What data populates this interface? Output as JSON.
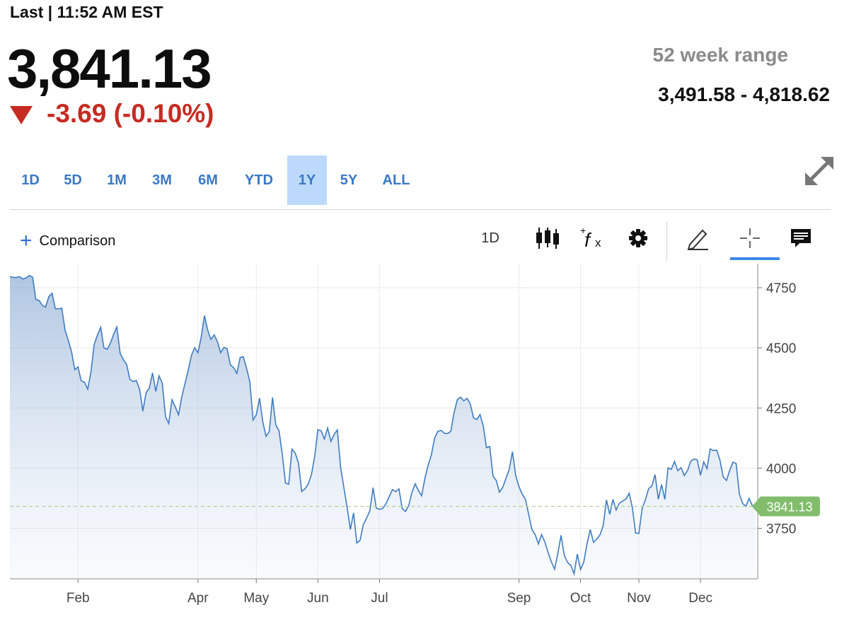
{
  "header": {
    "last_label": "Last | 11:52 AM EST",
    "price": "3,841.13",
    "change": "-3.69 (-0.10%)",
    "range_label": "52 week range",
    "range_value": "3,491.58 - 4,818.62"
  },
  "colors": {
    "up": "#7cc06a",
    "down": "#c62b22",
    "accent": "#3a78c5",
    "line": "#3f7cc0",
    "tab_active_bg": "#bcd9fb"
  },
  "tabs": [
    {
      "label": "1D",
      "active": false
    },
    {
      "label": "5D",
      "active": false
    },
    {
      "label": "1M",
      "active": false
    },
    {
      "label": "3M",
      "active": false
    },
    {
      "label": "6M",
      "active": false
    },
    {
      "label": "YTD",
      "active": false
    },
    {
      "label": "1Y",
      "active": true
    },
    {
      "label": "5Y",
      "active": false
    },
    {
      "label": "ALL",
      "active": false
    }
  ],
  "toolbar": {
    "comparison_label": "Comparison",
    "interval_label": "1D",
    "icons": [
      "candlestick-icon",
      "function-icon",
      "gear-icon",
      "pencil-icon",
      "crosshair-icon",
      "comment-icon"
    ]
  },
  "chart_data": {
    "type": "area",
    "y_ticks": [
      4750,
      4500,
      4250,
      4000,
      3750
    ],
    "ylim": [
      3540,
      4850
    ],
    "x_ticks": [
      {
        "label": "Feb",
        "index": 21
      },
      {
        "label": "Apr",
        "index": 58
      },
      {
        "label": "May",
        "index": 76
      },
      {
        "label": "Jun",
        "index": 95
      },
      {
        "label": "Jul",
        "index": 114
      },
      {
        "label": "Sep",
        "index": 157
      },
      {
        "label": "Oct",
        "index": 176
      },
      {
        "label": "Nov",
        "index": 194
      },
      {
        "label": "Dec",
        "index": 213
      }
    ],
    "last_value_label": "3841.13",
    "last_value": 3841.13,
    "grid": true,
    "values": [
      4796,
      4793,
      4792,
      4796,
      4786,
      4791,
      4801,
      4794,
      4701,
      4697,
      4677,
      4669,
      4713,
      4727,
      4663,
      4662,
      4665,
      4575,
      4531,
      4484,
      4409,
      4421,
      4363,
      4357,
      4328,
      4401,
      4514,
      4553,
      4586,
      4500,
      4494,
      4520,
      4556,
      4587,
      4477,
      4451,
      4431,
      4369,
      4360,
      4364,
      4329,
      4237,
      4314,
      4333,
      4396,
      4319,
      4384,
      4354,
      4213,
      4186,
      4284,
      4255,
      4221,
      4296,
      4352,
      4406,
      4469,
      4501,
      4480,
      4545,
      4634,
      4574,
      4535,
      4554,
      4526,
      4480,
      4502,
      4496,
      4429,
      4418,
      4394,
      4460,
      4463,
      4415,
      4359,
      4200,
      4222,
      4291,
      4193,
      4132,
      4152,
      4294,
      4180,
      4155,
      4059,
      3938,
      3933,
      4079,
      4062,
      4021,
      3903,
      3914,
      3934,
      3973,
      4049,
      4160,
      4155,
      4121,
      4167,
      4111,
      4140,
      4159,
      4004,
      3920,
      3837,
      3745,
      3814,
      3689,
      3700,
      3765,
      3792,
      3822,
      3919,
      3834,
      3829,
      3833,
      3853,
      3882,
      3911,
      3902,
      3914,
      3832,
      3820,
      3844,
      3899,
      3935,
      3907,
      3885,
      3958,
      4013,
      4055,
      4125,
      4153,
      4157,
      4145,
      4144,
      4153,
      4231,
      4285,
      4295,
      4280,
      4290,
      4267,
      4209,
      4202,
      4223,
      4175,
      4085,
      4090,
      3967,
      3949,
      3900,
      3920,
      3957,
      3994,
      4068,
      3970,
      3923,
      3892,
      3871,
      3809,
      3745,
      3724,
      3685,
      3724,
      3693,
      3649,
      3611,
      3580,
      3646,
      3721,
      3637,
      3608,
      3596,
      3561,
      3643,
      3579,
      3609,
      3686,
      3745,
      3692,
      3706,
      3722,
      3761,
      3868,
      3808,
      3870,
      3826,
      3855,
      3863,
      3872,
      3896,
      3835,
      3730,
      3729,
      3832,
      3868,
      3915,
      3926,
      3973,
      3871,
      3932,
      3870,
      4001,
      3995,
      4028,
      3989,
      4002,
      3969,
      3990,
      4029,
      4038,
      4035,
      3970,
      4026,
      3998,
      4080,
      4073,
      4075,
      4033,
      3963,
      3949,
      3990,
      4025,
      4019,
      3891,
      3853,
      3842,
      3874,
      3844,
      3841
    ]
  }
}
